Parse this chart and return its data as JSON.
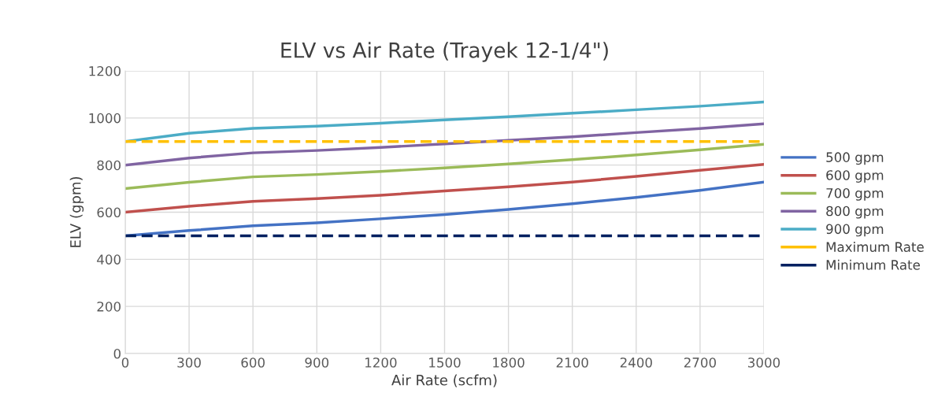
{
  "chart_data": {
    "type": "line",
    "title": "ELV vs Air Rate (Trayek 12-1/4\")",
    "xlabel": "Air Rate (scfm)",
    "ylabel": "ELV (gpm)",
    "x": [
      0,
      300,
      600,
      900,
      1200,
      1500,
      1800,
      2100,
      2400,
      2700,
      3000
    ],
    "series": [
      {
        "name": "500 gpm",
        "color": "#4472c4",
        "values": [
          500,
          522,
          542,
          555,
          572,
          590,
          612,
          636,
          663,
          693,
          728
        ]
      },
      {
        "name": "600 gpm",
        "color": "#c0504d",
        "values": [
          600,
          625,
          646,
          658,
          672,
          690,
          708,
          728,
          752,
          778,
          803
        ]
      },
      {
        "name": "700 gpm",
        "color": "#9bbb59",
        "values": [
          700,
          727,
          750,
          760,
          773,
          788,
          805,
          823,
          843,
          865,
          888
        ]
      },
      {
        "name": "800 gpm",
        "color": "#8064a2",
        "values": [
          800,
          830,
          852,
          862,
          875,
          890,
          905,
          920,
          938,
          955,
          975
        ]
      },
      {
        "name": "900 gpm",
        "color": "#4bacc6",
        "values": [
          900,
          935,
          956,
          965,
          978,
          992,
          1005,
          1020,
          1035,
          1050,
          1068
        ]
      },
      {
        "name": "Maximum Rate",
        "color": "#ffc000",
        "line_style": "dashed",
        "values": [
          900,
          900,
          900,
          900,
          900,
          900,
          900,
          900,
          900,
          900,
          900
        ]
      },
      {
        "name": "Minimum Rate",
        "color": "#002060",
        "line_style": "dashed",
        "values": [
          500,
          500,
          500,
          500,
          500,
          500,
          500,
          500,
          500,
          500,
          500
        ]
      }
    ],
    "xlim": [
      0,
      3000
    ],
    "xticks": [
      0,
      300,
      600,
      900,
      1200,
      1500,
      1800,
      2100,
      2400,
      2700,
      3000
    ],
    "ylim": [
      0,
      1200
    ],
    "yticks": [
      0,
      200,
      400,
      600,
      800,
      1000,
      1200
    ],
    "grid": true,
    "legend": "right",
    "marker": "none",
    "line_style": "solid"
  }
}
